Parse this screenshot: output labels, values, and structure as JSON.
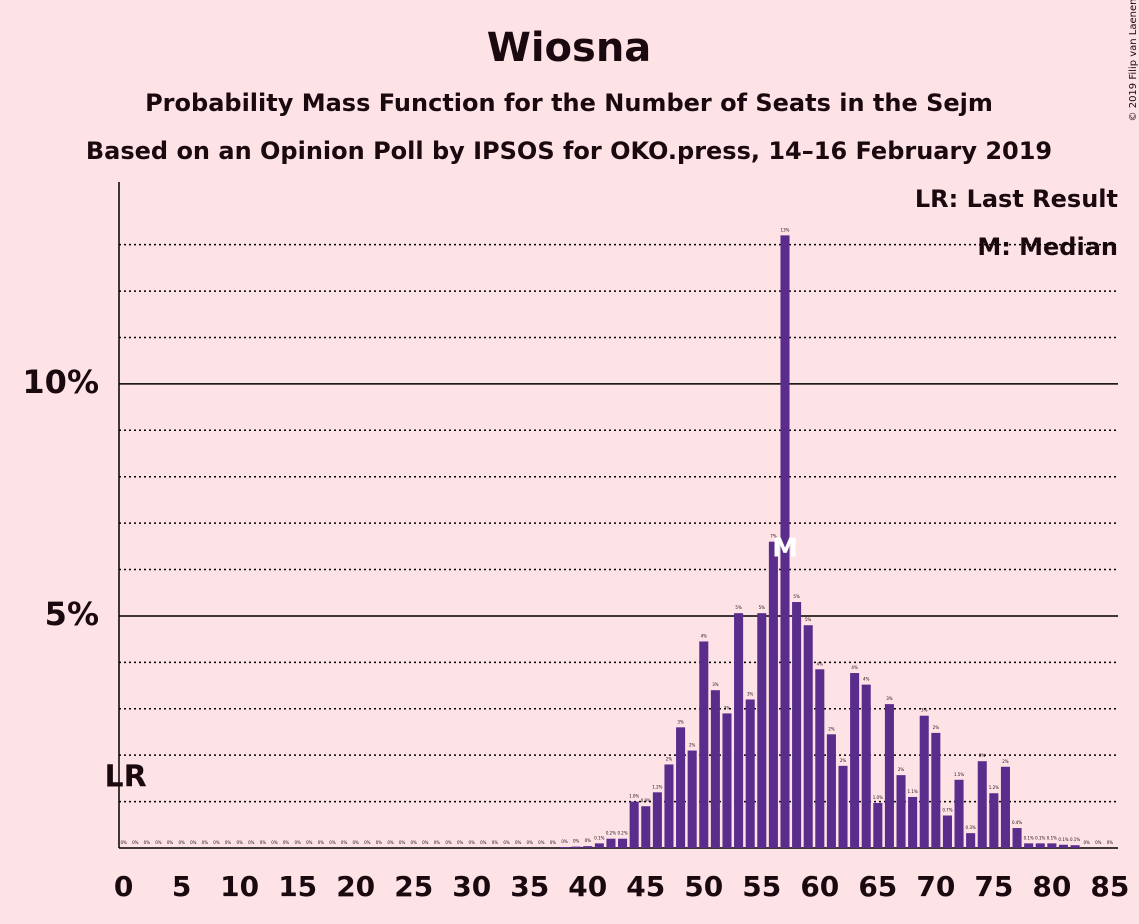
{
  "chart_data": {
    "type": "bar",
    "title": "Wiosna",
    "subtitle": "Probability Mass Function for the Number of Seats in the Sejm",
    "subtitle2": "Based on an Opinion Poll by IPSOS for OKO.press, 14–16 February 2019",
    "copyright": "© 2019 Filip van Laenen",
    "legend": [
      "LR: Last Result",
      "M: Median"
    ],
    "last_result": {
      "label": "LR",
      "x": 0
    },
    "median": {
      "label": "M",
      "x": 57
    },
    "color": "#5a2d8c",
    "x": [
      0,
      1,
      2,
      3,
      4,
      5,
      6,
      7,
      8,
      9,
      10,
      11,
      12,
      13,
      14,
      15,
      16,
      17,
      18,
      19,
      20,
      21,
      22,
      23,
      24,
      25,
      26,
      27,
      28,
      29,
      30,
      31,
      32,
      33,
      34,
      35,
      36,
      37,
      38,
      39,
      40,
      41,
      42,
      43,
      44,
      45,
      46,
      47,
      48,
      49,
      50,
      51,
      52,
      53,
      54,
      55,
      56,
      57,
      58,
      59,
      60,
      61,
      62,
      63,
      64,
      65,
      66,
      67,
      68,
      69,
      70,
      71,
      72,
      73,
      74,
      75,
      76,
      77,
      78,
      79,
      80,
      81,
      82,
      83,
      84,
      85
    ],
    "values": [
      0,
      0,
      0,
      0,
      0,
      0,
      0,
      0,
      0,
      0,
      0,
      0,
      0,
      0,
      0,
      0,
      0,
      0,
      0,
      0,
      0,
      0,
      0,
      0,
      0,
      0,
      0,
      0,
      0,
      0,
      0,
      0,
      0,
      0,
      0,
      0,
      0,
      0,
      0.02,
      0.03,
      0.04,
      0.1,
      0.2,
      0.2,
      1.0,
      0.9,
      1.2,
      1.8,
      2.6,
      2.1,
      4.45,
      3.4,
      2.9,
      5.06,
      3.2,
      5.06,
      6.6,
      13.2,
      5.3,
      4.8,
      3.85,
      2.45,
      1.77,
      3.77,
      3.52,
      0.97,
      3.1,
      1.57,
      1.1,
      2.85,
      2.48,
      0.7,
      1.47,
      0.32,
      1.87,
      1.18,
      1.75,
      0.43,
      0.1,
      0.1,
      0.1,
      0.07,
      0.06,
      0,
      0,
      0
    ],
    "value_labels": [
      "0%",
      "0%",
      "0%",
      "0%",
      "0%",
      "0%",
      "0%",
      "0%",
      "0%",
      "0%",
      "0%",
      "0%",
      "0%",
      "0%",
      "0%",
      "0%",
      "0%",
      "0%",
      "0%",
      "0%",
      "0%",
      "0%",
      "0%",
      "0%",
      "0%",
      "0%",
      "0%",
      "0%",
      "0%",
      "0%",
      "0%",
      "0%",
      "0%",
      "0%",
      "0%",
      "0%",
      "0%",
      "0%",
      "0%",
      "0%",
      "0%",
      "0.1%",
      "0.2%",
      "0.2%",
      "1.0%",
      "0.9%",
      "1.2%",
      "2%",
      "3%",
      "2%",
      "4%",
      "3%",
      "3%",
      "5%",
      "3%",
      "5%",
      "7%",
      "13%",
      "5%",
      "5%",
      "4%",
      "2%",
      "2%",
      "4%",
      "4%",
      "1.0%",
      "3%",
      "2%",
      "1.1%",
      "3%",
      "2%",
      "0.7%",
      "1.5%",
      "0.3%",
      "2%",
      "1.2%",
      "2%",
      "0.4%",
      "0.1%",
      "0.1%",
      "0.1%",
      "0.1%",
      "0.1%",
      "0%",
      "0%",
      "0%"
    ],
    "xlim": [
      -0.4,
      85.7
    ],
    "xticks": [
      0,
      5,
      10,
      15,
      20,
      25,
      30,
      35,
      40,
      45,
      50,
      55,
      60,
      65,
      70,
      75,
      80,
      85
    ],
    "ylim": [
      0,
      14.35
    ],
    "yticks": [
      {
        "value": 5,
        "label": "5%"
      },
      {
        "value": 10,
        "label": "10%"
      }
    ],
    "minor_yticks": [
      1,
      2,
      3,
      4,
      6,
      7,
      8,
      9,
      11,
      12,
      13
    ]
  }
}
